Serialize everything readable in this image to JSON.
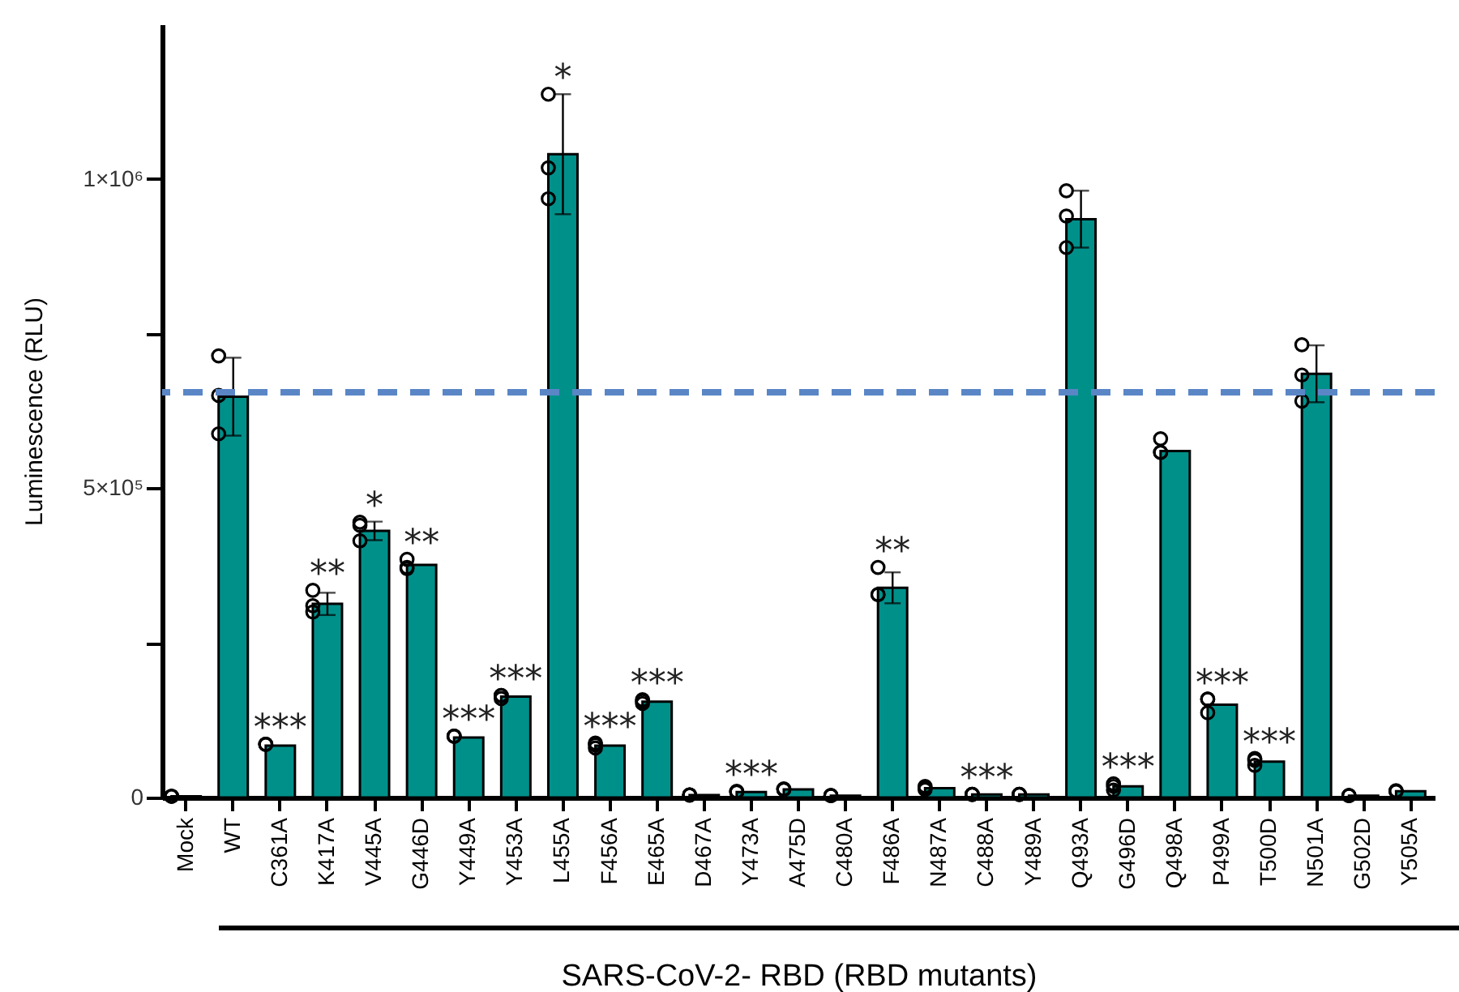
{
  "chart_data": {
    "type": "bar",
    "ylabel": "Luminescence (RLU)",
    "xlabel": "SARS-CoV-2- RBD (RBD mutants)",
    "categories": [
      "Mock",
      "WT",
      "C361A",
      "K417A",
      "V445A",
      "G446D",
      "Y449A",
      "Y453A",
      "L455A",
      "F456A",
      "E465A",
      "D467A",
      "Y473A",
      "A475D",
      "C480A",
      "F486A",
      "N487A",
      "C488A",
      "Y489A",
      "Q493A",
      "G496D",
      "Q498A",
      "P499A",
      "T500D",
      "N501A",
      "G502D",
      "Y505A"
    ],
    "series": [
      {
        "type": "bar",
        "color": "#00908a",
        "values": [
          2000,
          648000,
          84000,
          313000,
          431000,
          376000,
          97000,
          163000,
          1040000,
          84000,
          155000,
          4000,
          9000,
          13000,
          3000,
          339000,
          15000,
          5000,
          5000,
          935000,
          18000,
          560000,
          150000,
          58000,
          685000,
          3000,
          10000
        ],
        "errors": [
          null,
          63000,
          null,
          18000,
          15000,
          null,
          null,
          null,
          97000,
          null,
          null,
          null,
          null,
          null,
          null,
          25000,
          null,
          null,
          null,
          46000,
          null,
          null,
          null,
          null,
          46000,
          null,
          null
        ]
      },
      {
        "type": "scatter",
        "color": "#000000",
        "marker": "circle",
        "x": [
          "Mock",
          "Mock",
          "Mock",
          "WT",
          "WT",
          "WT",
          "C361A",
          "C361A",
          "C361A",
          "K417A",
          "K417A",
          "K417A",
          "V445A",
          "V445A",
          "V445A",
          "G446D",
          "G446D",
          "G446D",
          "Y449A",
          "Y449A",
          "Y449A",
          "Y453A",
          "Y453A",
          "Y453A",
          "L455A",
          "L455A",
          "L455A",
          "F456A",
          "F456A",
          "F456A",
          "E465A",
          "E465A",
          "E465A",
          "D467A",
          "D467A",
          "D467A",
          "Y473A",
          "Y473A",
          "Y473A",
          "A475D",
          "A475D",
          "A475D",
          "C480A",
          "C480A",
          "C480A",
          "F486A",
          "F486A",
          "F486A",
          "N487A",
          "N487A",
          "N487A",
          "C488A",
          "C488A",
          "C488A",
          "Y489A",
          "Y489A",
          "Y489A",
          "Q493A",
          "Q493A",
          "Q493A",
          "G496D",
          "G496D",
          "G496D",
          "Q498A",
          "Q498A",
          "Q498A",
          "P499A",
          "P499A",
          "P499A",
          "T500D",
          "T500D",
          "T500D",
          "N501A",
          "N501A",
          "N501A",
          "G502D",
          "G502D",
          "G502D",
          "Y505A",
          "Y505A",
          "Y505A"
        ],
        "values": [
          2000,
          2000,
          2000,
          714000,
          650000,
          588000,
          86000,
          86000,
          86000,
          335000,
          300000,
          310000,
          445000,
          415000,
          440000,
          385000,
          370000,
          372000,
          99000,
          99000,
          99000,
          165000,
          160000,
          165000,
          1137000,
          1018000,
          968000,
          85000,
          88000,
          80000,
          158000,
          152000,
          156000,
          4000,
          4000,
          4000,
          9000,
          10000,
          9000,
          13000,
          14000,
          13000,
          3000,
          3000,
          3000,
          328000,
          372000,
          328000,
          15000,
          18000,
          13000,
          5000,
          5000,
          5000,
          5000,
          5000,
          5000,
          889000,
          940000,
          981000,
          12000,
          22000,
          18000,
          580000,
          558000,
          558000,
          137000,
          159000,
          159000,
          52000,
          63000,
          60000,
          641000,
          683000,
          732000,
          3000,
          3000,
          3000,
          10000,
          11000,
          10000
        ]
      }
    ],
    "ylim": [
      0,
      1250000
    ],
    "yticks": [
      0,
      {
        "value": 250000,
        "label": null
      },
      {
        "value": 500000,
        "label": "5×10⁵"
      },
      {
        "value": 750000,
        "label": null
      },
      {
        "value": 1000000,
        "label": "1×10⁶"
      }
    ],
    "grid": false,
    "ref_lines": [
      {
        "axis": "y",
        "value": 655000,
        "color": "#5a86c6",
        "line_style": "dashed"
      }
    ],
    "annotations": [
      {
        "text": "***",
        "x": "C361A",
        "y": 86000
      },
      {
        "text": "**",
        "x": "K417A",
        "y": 335000
      },
      {
        "text": "*",
        "x": "V445A",
        "y": 445000
      },
      {
        "text": "**",
        "x": "G446D",
        "y": 385000
      },
      {
        "text": "***",
        "x": "Y449A",
        "y": 99000
      },
      {
        "text": "***",
        "x": "Y453A",
        "y": 165000
      },
      {
        "text": "*",
        "x": "L455A",
        "y": 1137000
      },
      {
        "text": "***",
        "x": "F456A",
        "y": 88000
      },
      {
        "text": "***",
        "x": "E465A",
        "y": 158000
      },
      {
        "text": "***",
        "x": "Y473A",
        "y": 10000
      },
      {
        "text": "**",
        "x": "F486A",
        "y": 372000
      },
      {
        "text": "***",
        "x": "C488A",
        "y": 5000
      },
      {
        "text": "***",
        "x": "G496D",
        "y": 22000
      },
      {
        "text": "***",
        "x": "P499A",
        "y": 159000
      },
      {
        "text": "***",
        "x": "T500D",
        "y": 63000
      }
    ]
  }
}
